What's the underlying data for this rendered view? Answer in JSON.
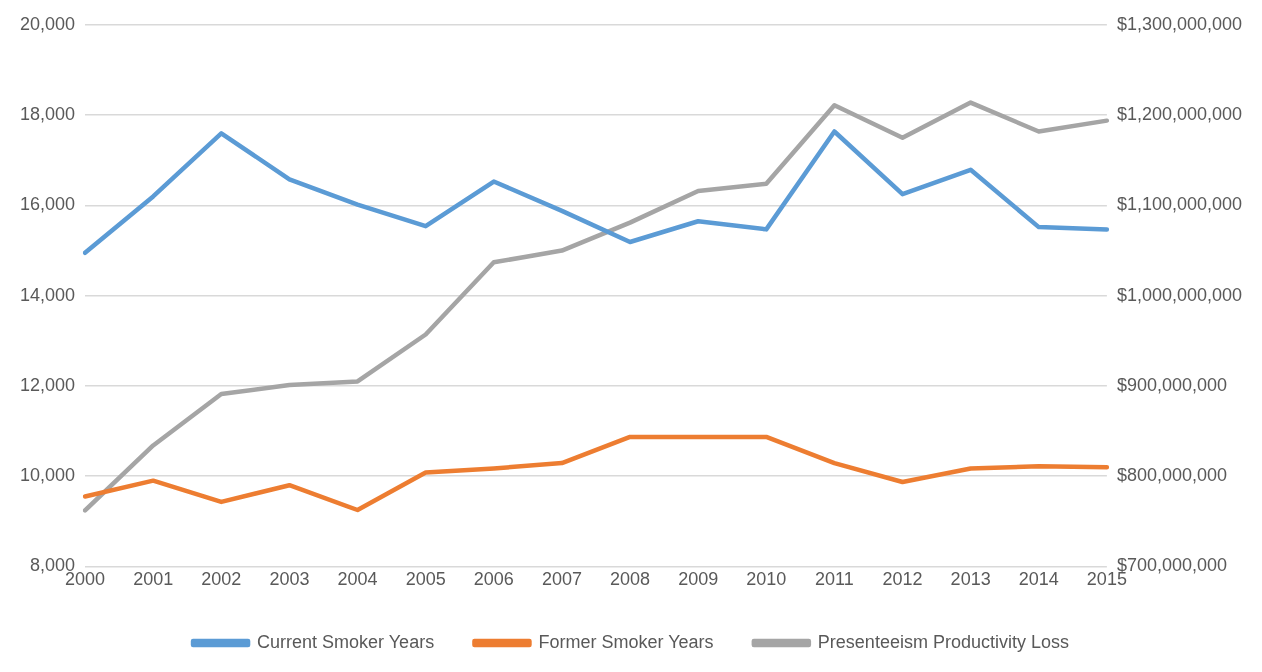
{
  "chart_data": {
    "type": "line",
    "categories": [
      "2000",
      "2001",
      "2002",
      "2003",
      "2004",
      "2005",
      "2006",
      "2007",
      "2008",
      "2009",
      "2010",
      "2011",
      "2012",
      "2013",
      "2014",
      "2015"
    ],
    "series": [
      {
        "name": "Current Smoker Years",
        "color": "#5b9bd5",
        "values": [
          14950,
          16200,
          17600,
          16580,
          16020,
          15540,
          16530,
          15880,
          15190,
          15650,
          15470,
          17640,
          16250,
          16790,
          15520,
          15470
        ]
      },
      {
        "name": "Former Smoker Years",
        "color": "#ed7d31",
        "values": [
          9550,
          9900,
          9430,
          9800,
          9250,
          10080,
          10170,
          10290,
          10870,
          10870,
          10870,
          10290,
          9870,
          10170,
          10220,
          10200
        ]
      },
      {
        "name": "Presenteeism Productivity Loss",
        "color": "#a5a5a5",
        "axis": "y2",
        "values": [
          762000000,
          834000000,
          891000000,
          901000000,
          905000000,
          957000000,
          1037000000,
          1050000000,
          1081000000,
          1116000000,
          1124000000,
          1211000000,
          1175000000,
          1214000000,
          1182000000,
          1194000000
        ]
      }
    ],
    "ylim": [
      8000,
      20000
    ],
    "yticks": [
      {
        "value": 8000,
        "label": "8,000"
      },
      {
        "value": 10000,
        "label": "10,000"
      },
      {
        "value": 12000,
        "label": "12,000"
      },
      {
        "value": 14000,
        "label": "14,000"
      },
      {
        "value": 16000,
        "label": "16,000"
      },
      {
        "value": 18000,
        "label": "18,000"
      },
      {
        "value": 20000,
        "label": "20,000"
      }
    ],
    "y2lim": [
      700000000,
      1300000000
    ],
    "y2ticks": [
      {
        "value": 700000000,
        "label": "$700,000,000"
      },
      {
        "value": 800000000,
        "label": "$800,000,000"
      },
      {
        "value": 900000000,
        "label": "$900,000,000"
      },
      {
        "value": 1000000000,
        "label": "$1,000,000,000"
      },
      {
        "value": 1100000000,
        "label": "$1,100,000,000"
      },
      {
        "value": 1200000000,
        "label": "$1,200,000,000"
      },
      {
        "value": 1300000000,
        "label": "$1,300,000,000"
      }
    ],
    "grid": "y",
    "legend": "bottom",
    "marker": "none",
    "line_style": "solid"
  }
}
